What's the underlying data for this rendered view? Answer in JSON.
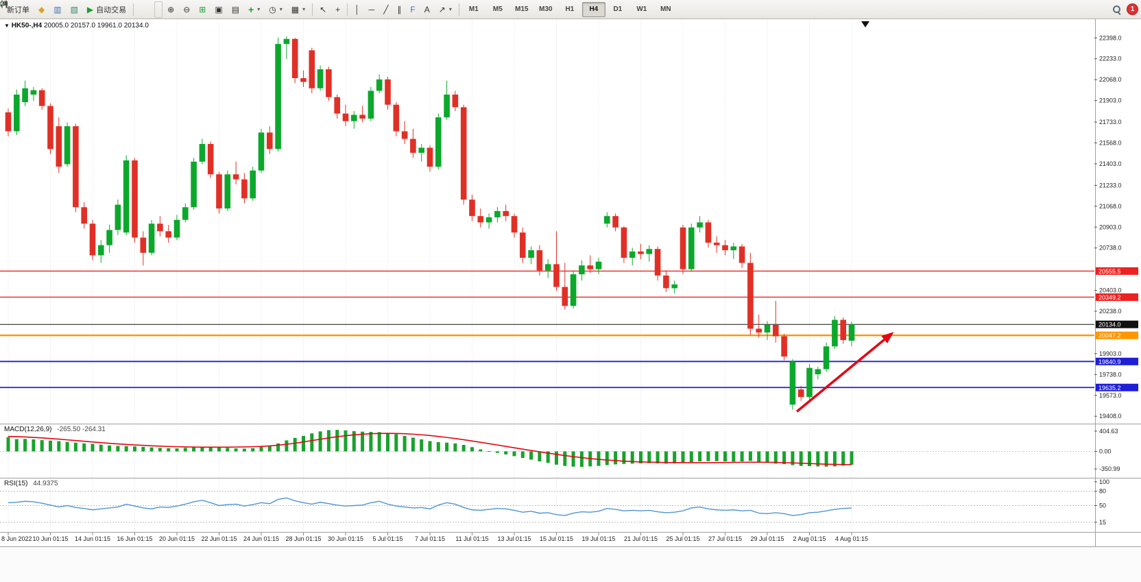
{
  "toolbar": {
    "new_order_label": "新订单",
    "auto_trading_label": "自动交易",
    "timeframes": [
      "M1",
      "M5",
      "M15",
      "M30",
      "H1",
      "H4",
      "D1",
      "W1",
      "MN"
    ],
    "active_timeframe": "H4",
    "notification_badge": "1"
  },
  "icons": {
    "market_watch": "◆",
    "data_window": "▥",
    "navigator": "▧",
    "play": "▶",
    "zoom_in": "⊕",
    "zoom_out": "⊖",
    "tile_windows": "⊞",
    "cascade": "▣",
    "arrange": "▤",
    "add_indicator": "+",
    "clock": "◷",
    "template": "▦",
    "cursor": "↖",
    "crosshair": "+",
    "vertical_line": "│",
    "horizontal_line": "─",
    "trendline": "╱",
    "channel": "∥",
    "fibonacci": "F",
    "text_tool": "A",
    "arrow_tool": "↗",
    "caret": "▾",
    "collapse": "▼"
  },
  "chart_header": {
    "symbol": "HK50-,H4",
    "ohlc": "20005.0 20157.0 19961.0 20134.0"
  },
  "chart_data": [
    {
      "type": "candlestick",
      "symbol": "HK50-",
      "timeframe": "H4",
      "last_ohlc": {
        "open": 20005.0,
        "high": 20157.0,
        "low": 19961.0,
        "close": 20134.0
      },
      "ylim": [
        19355,
        22535
      ],
      "y_ticks": [
        "22398.0",
        "22233.0",
        "22068.0",
        "21903.0",
        "21733.0",
        "21568.0",
        "21403.0",
        "21233.0",
        "21068.0",
        "20903.0",
        "20738.0",
        "20403.0",
        "20238.0",
        "19903.0",
        "19738.0",
        "19573.0",
        "19408.0"
      ],
      "x_labels": [
        "8 Jun 2022",
        "10 Jun 01:15",
        "14 Jun 01:15",
        "16 Jun 01:15",
        "20 Jun 01:15",
        "22 Jun 01:15",
        "24 Jun 01:15",
        "28 Jun 01:15",
        "30 Jun 01:15",
        "5 Jul 01:15",
        "7 Jul 01:15",
        "11 Jul 01:15",
        "13 Jul 01:15",
        "15 Jul 01:15",
        "19 Jul 01:15",
        "21 Jul 01:15",
        "25 Jul 01:15",
        "27 Jul 01:15",
        "29 Jul 01:15",
        "2 Aug 01:15",
        "4 Aug 01:15"
      ],
      "x_label_every": 5,
      "colors": {
        "bull": "#0ca82c",
        "bear": "#e03026"
      },
      "levels": [
        {
          "price": 20555.5,
          "label": "20555.5",
          "color": "#ee2222",
          "width": 1.4
        },
        {
          "price": 20349.2,
          "label": "20349.2",
          "color": "#ee2222",
          "width": 1.4
        },
        {
          "price": 20134.0,
          "label": "20134.0",
          "color": "#111111",
          "width": 1
        },
        {
          "price": 20047.2,
          "label": "20047.2",
          "color": "#ff9500",
          "width": 2.4
        },
        {
          "price": 19840.9,
          "label": "19840.9",
          "color": "#1f1fd8",
          "width": 1.8
        },
        {
          "price": 19635.2,
          "label": "19635.2",
          "color": "#1f1fd8",
          "width": 1.8
        }
      ],
      "annotations": {
        "trend_arrow": {
          "from_index": 93.5,
          "from_price": 19445,
          "to_index": 105,
          "to_price": 20075,
          "color": "#e30613"
        }
      },
      "candles": [
        [
          21810,
          21840,
          21620,
          21660
        ],
        [
          21660,
          21990,
          21630,
          21950
        ],
        [
          21890,
          22060,
          21860,
          22000
        ],
        [
          21950,
          22010,
          21900,
          21985
        ],
        [
          21985,
          22000,
          21830,
          21860
        ],
        [
          21860,
          21880,
          21480,
          21520
        ],
        [
          21700,
          21770,
          21330,
          21380
        ],
        [
          21400,
          21730,
          21380,
          21700
        ],
        [
          21700,
          21720,
          21020,
          21060
        ],
        [
          21060,
          21100,
          20890,
          20930
        ],
        [
          20930,
          20960,
          20640,
          20680
        ],
        [
          20680,
          20800,
          20620,
          20760
        ],
        [
          20760,
          20920,
          20700,
          20880
        ],
        [
          20880,
          21120,
          20840,
          21080
        ],
        [
          20860,
          21470,
          20840,
          21430
        ],
        [
          21430,
          21450,
          20780,
          20820
        ],
        [
          20820,
          20870,
          20600,
          20700
        ],
        [
          20700,
          20960,
          20680,
          20930
        ],
        [
          20930,
          20990,
          20830,
          20870
        ],
        [
          20870,
          20920,
          20780,
          20820
        ],
        [
          20820,
          21000,
          20800,
          20960
        ],
        [
          20960,
          21090,
          20940,
          21060
        ],
        [
          21060,
          21450,
          21040,
          21420
        ],
        [
          21420,
          21600,
          21400,
          21560
        ],
        [
          21560,
          21580,
          21290,
          21320
        ],
        [
          21320,
          21340,
          21010,
          21050
        ],
        [
          21050,
          21350,
          21030,
          21320
        ],
        [
          21320,
          21420,
          21240,
          21280
        ],
        [
          21280,
          21330,
          21090,
          21130
        ],
        [
          21130,
          21380,
          21110,
          21350
        ],
        [
          21350,
          21680,
          21330,
          21650
        ],
        [
          21650,
          21700,
          21480,
          21520
        ],
        [
          21520,
          22400,
          21500,
          22350
        ],
        [
          22350,
          22410,
          22230,
          22390
        ],
        [
          22390,
          22400,
          22040,
          22080
        ],
        [
          22080,
          22140,
          22010,
          22050
        ],
        [
          22300,
          22320,
          21960,
          22000
        ],
        [
          22000,
          22180,
          21980,
          22150
        ],
        [
          22150,
          22170,
          21900,
          21930
        ],
        [
          21930,
          21950,
          21760,
          21800
        ],
        [
          21800,
          21870,
          21700,
          21740
        ],
        [
          21740,
          21820,
          21680,
          21790
        ],
        [
          21790,
          21860,
          21730,
          21760
        ],
        [
          21760,
          22010,
          21740,
          21980
        ],
        [
          21980,
          22110,
          21960,
          22070
        ],
        [
          22070,
          22090,
          21830,
          21870
        ],
        [
          21870,
          21890,
          21620,
          21660
        ],
        [
          21660,
          21740,
          21560,
          21600
        ],
        [
          21600,
          21680,
          21450,
          21490
        ],
        [
          21490,
          21560,
          21420,
          21530
        ],
        [
          21530,
          21550,
          21340,
          21380
        ],
        [
          21380,
          21800,
          21360,
          21770
        ],
        [
          21770,
          22060,
          21750,
          21950
        ],
        [
          21950,
          21980,
          21820,
          21850
        ],
        [
          21850,
          21870,
          21080,
          21120
        ],
        [
          21120,
          21160,
          20950,
          20990
        ],
        [
          20990,
          21050,
          20900,
          20940
        ],
        [
          20940,
          21010,
          20890,
          20980
        ],
        [
          20980,
          21060,
          20940,
          21030
        ],
        [
          21030,
          21080,
          20950,
          20990
        ],
        [
          20990,
          21010,
          20820,
          20860
        ],
        [
          20860,
          20900,
          20620,
          20660
        ],
        [
          20660,
          20750,
          20610,
          20720
        ],
        [
          20720,
          20760,
          20520,
          20560
        ],
        [
          20560,
          20650,
          20500,
          20610
        ],
        [
          20610,
          20870,
          20400,
          20430
        ],
        [
          20430,
          20620,
          20250,
          20280
        ],
        [
          20280,
          20560,
          20260,
          20530
        ],
        [
          20530,
          20640,
          20480,
          20600
        ],
        [
          20600,
          20680,
          20540,
          20570
        ],
        [
          20570,
          20660,
          20530,
          20630
        ],
        [
          20930,
          21020,
          20900,
          20990
        ],
        [
          20990,
          21010,
          20870,
          20900
        ],
        [
          20900,
          20910,
          20620,
          20660
        ],
        [
          20660,
          20740,
          20600,
          20710
        ],
        [
          20710,
          20770,
          20650,
          20690
        ],
        [
          20690,
          20760,
          20630,
          20730
        ],
        [
          20730,
          20750,
          20480,
          20520
        ],
        [
          20520,
          20560,
          20390,
          20420
        ],
        [
          20420,
          20480,
          20380,
          20450
        ],
        [
          20900,
          20920,
          20530,
          20570
        ],
        [
          20570,
          20930,
          20550,
          20900
        ],
        [
          20900,
          20990,
          20860,
          20940
        ],
        [
          20940,
          20960,
          20740,
          20780
        ],
        [
          20780,
          20830,
          20700,
          20760
        ],
        [
          20760,
          20800,
          20680,
          20720
        ],
        [
          20720,
          20780,
          20650,
          20750
        ],
        [
          20750,
          20770,
          20580,
          20620
        ],
        [
          20620,
          20700,
          20050,
          20100
        ],
        [
          20100,
          20210,
          20030,
          20070
        ],
        [
          20070,
          20160,
          20010,
          20130
        ],
        [
          20130,
          20320,
          19990,
          20040
        ],
        [
          20040,
          20060,
          19850,
          19880
        ],
        [
          19500,
          19860,
          19460,
          19840
        ],
        [
          19620,
          19650,
          19530,
          19560
        ],
        [
          19560,
          19820,
          19540,
          19790
        ],
        [
          19740,
          19800,
          19700,
          19780
        ],
        [
          19780,
          19990,
          19760,
          19960
        ],
        [
          19960,
          20200,
          19940,
          20170
        ],
        [
          20170,
          20190,
          19980,
          20010
        ],
        [
          20005,
          20157,
          19961,
          20134
        ]
      ]
    },
    {
      "type": "bar",
      "name": "MACD",
      "label": "MACD(12,26,9)",
      "current_values": "-265.50 -264.31",
      "ylim": [
        -487,
        500
      ],
      "y_ticks": [
        "404.63",
        "0.00",
        "-350.99"
      ],
      "colors": {
        "histogram": "#18a22c",
        "signal": "#e30613"
      },
      "histogram": [
        285,
        245,
        250,
        240,
        225,
        215,
        205,
        190,
        175,
        160,
        150,
        135,
        120,
        110,
        105,
        100,
        90,
        80,
        70,
        65,
        60,
        70,
        85,
        95,
        90,
        80,
        70,
        60,
        55,
        65,
        90,
        110,
        160,
        220,
        270,
        310,
        360,
        400,
        425,
        430,
        420,
        405,
        395,
        390,
        385,
        370,
        345,
        310,
        275,
        240,
        205,
        185,
        175,
        160,
        130,
        85,
        40,
        5,
        -30,
        -60,
        -95,
        -130,
        -165,
        -200,
        -230,
        -265,
        -290,
        -305,
        -310,
        -300,
        -290,
        -275,
        -260,
        -250,
        -245,
        -240,
        -235,
        -240,
        -245,
        -240,
        -230,
        -215,
        -200,
        -195,
        -195,
        -200,
        -205,
        -200,
        -190,
        -210,
        -230,
        -245,
        -255,
        -275,
        -290,
        -295,
        -300,
        -305,
        -300,
        -285,
        -266
      ],
      "signal": [
        300,
        295,
        288,
        280,
        270,
        258,
        245,
        231,
        217,
        203,
        189,
        175,
        162,
        150,
        139,
        129,
        120,
        112,
        105,
        99,
        94,
        90,
        87,
        85,
        84,
        84,
        85,
        87,
        90,
        94,
        100,
        110,
        124,
        142,
        164,
        189,
        216,
        243,
        269,
        293,
        314,
        331,
        344,
        353,
        358,
        360,
        358,
        353,
        344,
        332,
        317,
        299,
        279,
        257,
        233,
        208,
        182,
        155,
        128,
        100,
        72,
        45,
        18,
        -8,
        -34,
        -59,
        -83,
        -105,
        -125,
        -143,
        -159,
        -173,
        -185,
        -195,
        -203,
        -210,
        -215,
        -219,
        -222,
        -224,
        -225,
        -226,
        -226,
        -225,
        -224,
        -222,
        -220,
        -218,
        -217,
        -217,
        -218,
        -221,
        -225,
        -230,
        -236,
        -243,
        -250,
        -256,
        -260,
        -263,
        -264
      ]
    },
    {
      "type": "line",
      "name": "RSI",
      "label": "RSI(15)",
      "current_value": "44.9375",
      "ylim": [
        -4,
        104
      ],
      "y_ticks": [
        "100",
        "80",
        "50",
        "15"
      ],
      "levels": [
        80,
        50,
        15
      ],
      "colors": {
        "line": "#4f94d4"
      },
      "values": [
        56,
        57,
        59,
        58,
        55,
        51,
        47,
        50,
        46,
        44,
        41,
        43,
        45,
        47,
        53,
        49,
        45,
        43,
        47,
        46,
        49,
        53,
        58,
        61,
        56,
        50,
        52,
        53,
        49,
        52,
        56,
        54,
        63,
        66,
        60,
        56,
        53,
        57,
        54,
        51,
        49,
        50,
        51,
        56,
        59,
        53,
        49,
        47,
        45,
        46,
        43,
        51,
        56,
        53,
        46,
        41,
        40,
        42,
        44,
        43,
        40,
        36,
        38,
        34,
        35,
        31,
        29,
        34,
        37,
        36,
        38,
        44,
        42,
        39,
        40,
        39,
        40,
        37,
        35,
        36,
        39,
        45,
        47,
        43,
        41,
        40,
        41,
        39,
        40,
        34,
        33,
        35,
        33,
        29,
        31,
        35,
        36,
        39,
        42,
        44,
        44.94
      ]
    }
  ]
}
